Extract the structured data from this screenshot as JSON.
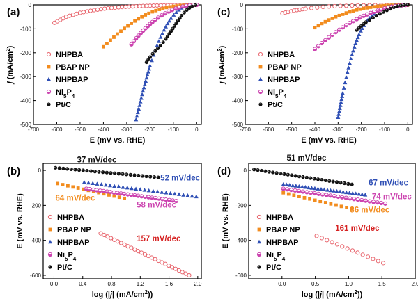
{
  "chart_data": [
    {
      "panel": "(a)",
      "type": "line",
      "xlabel": "E (mV vs. RHE)",
      "ylabel": "j (mA/cm2)",
      "xlim": [
        -700,
        20
      ],
      "ylim": [
        -500,
        0
      ],
      "xticks": [
        -700,
        -600,
        -500,
        -400,
        -300,
        -200,
        -100,
        0
      ],
      "yticks": [
        -500,
        -400,
        -300,
        -200,
        -100,
        0
      ],
      "legend_position": "middle-left",
      "series": [
        {
          "name": "NHPBA",
          "color": "#e8666e",
          "marker": "open-circle",
          "x": [
            -610,
            -560,
            -500,
            -440,
            -380,
            -320,
            -260,
            -200,
            -140,
            -80,
            -20,
            0
          ],
          "y": [
            -75,
            -50,
            -33,
            -22,
            -14,
            -9,
            -6,
            -3.5,
            -2,
            -1,
            -0.3,
            0
          ]
        },
        {
          "name": "PBAP NP",
          "color": "#f28c1e",
          "marker": "square",
          "x": [
            -400,
            -370,
            -340,
            -310,
            -280,
            -250,
            -220,
            -190,
            -160,
            -130,
            -100,
            -70,
            -40,
            -10,
            0
          ],
          "y": [
            -175,
            -148,
            -122,
            -98,
            -77,
            -58,
            -42,
            -29,
            -19,
            -11,
            -6,
            -3,
            -1,
            -0.3,
            0
          ]
        },
        {
          "name": "NHPBAP",
          "color": "#2f4fb5",
          "marker": "triangle",
          "x": [
            -260,
            -245,
            -230,
            -215,
            -200,
            -185,
            -170,
            -155,
            -140,
            -125,
            -110,
            -95,
            -80,
            -65,
            -50,
            -35,
            -20,
            0
          ],
          "y": [
            -480,
            -420,
            -360,
            -305,
            -255,
            -210,
            -170,
            -135,
            -105,
            -78,
            -56,
            -38,
            -24,
            -13,
            -6,
            -2,
            -0.5,
            0
          ]
        },
        {
          "name": "Ni5P4",
          "color": "#cc44b0",
          "marker": "half-circle",
          "x": [
            -280,
            -260,
            -240,
            -220,
            -200,
            -180,
            -160,
            -140,
            -120,
            -100,
            -80,
            -60,
            -40,
            -20,
            0
          ],
          "y": [
            -165,
            -140,
            -118,
            -98,
            -80,
            -64,
            -50,
            -38,
            -28,
            -19,
            -12,
            -7,
            -3,
            -1,
            0
          ]
        },
        {
          "name": "Pt/C",
          "color": "#111111",
          "marker": "black-circle",
          "x": [
            -215,
            -200,
            -185,
            -170,
            -155,
            -140,
            -125,
            -110,
            -95,
            -80,
            -65,
            -50,
            -35,
            -20,
            -5,
            0
          ],
          "y": [
            -240,
            -218,
            -200,
            -185,
            -170,
            -152,
            -132,
            -110,
            -88,
            -66,
            -45,
            -28,
            -15,
            -6,
            -1,
            0
          ]
        }
      ],
      "legend": [
        "NHPBA",
        "PBAP NP",
        "NHPBAP",
        "Ni5P4",
        "Pt/C"
      ]
    },
    {
      "panel": "(c)",
      "type": "line",
      "xlabel": "E (mV vs. RHE)",
      "ylabel": "j (mA/cm2)",
      "xlim": [
        -700,
        20
      ],
      "ylim": [
        -500,
        0
      ],
      "xticks": [
        -700,
        -600,
        -500,
        -400,
        -300,
        -200,
        -100,
        0
      ],
      "yticks": [
        -500,
        -400,
        -300,
        -200,
        -100,
        0
      ],
      "legend_position": "middle-left",
      "series": [
        {
          "name": "NHPBA",
          "color": "#e8666e",
          "marker": "open-circle",
          "x": [
            -540,
            -490,
            -440,
            -390,
            -340,
            -290,
            -240,
            -190,
            -140,
            -90,
            -40,
            0
          ],
          "y": [
            -35,
            -24,
            -16,
            -11,
            -7,
            -4.5,
            -3,
            -2,
            -1.2,
            -0.6,
            -0.2,
            0
          ]
        },
        {
          "name": "PBAP NP",
          "color": "#f28c1e",
          "marker": "square",
          "x": [
            -400,
            -370,
            -340,
            -310,
            -280,
            -250,
            -220,
            -190,
            -160,
            -130,
            -100,
            -70,
            -40,
            -10,
            0
          ],
          "y": [
            -95,
            -78,
            -63,
            -50,
            -39,
            -29,
            -21,
            -15,
            -10,
            -6,
            -3.5,
            -1.8,
            -0.7,
            -0.2,
            0
          ]
        },
        {
          "name": "NHPBAP",
          "color": "#2f4fb5",
          "marker": "triangle",
          "x": [
            -300,
            -290,
            -280,
            -270,
            -260,
            -250,
            -240,
            -230,
            -220,
            -210,
            -200,
            -185,
            -170,
            -150,
            -130,
            -110,
            -90,
            -70,
            -50,
            -30,
            -10,
            0
          ],
          "y": [
            -470,
            -420,
            -370,
            -325,
            -282,
            -244,
            -208,
            -176,
            -148,
            -124,
            -104,
            -80,
            -60,
            -42,
            -28,
            -18,
            -10,
            -5,
            -2,
            -0.8,
            -0.2,
            0
          ]
        },
        {
          "name": "Ni5P4",
          "color": "#cc44b0",
          "marker": "half-circle",
          "x": [
            -400,
            -370,
            -340,
            -310,
            -280,
            -250,
            -220,
            -190,
            -160,
            -130,
            -100,
            -70,
            -40,
            -10,
            0
          ],
          "y": [
            -185,
            -160,
            -136,
            -114,
            -94,
            -76,
            -60,
            -46,
            -34,
            -24,
            -15,
            -8,
            -3.5,
            -0.8,
            0
          ]
        },
        {
          "name": "Pt/C",
          "color": "#111111",
          "marker": "black-circle",
          "x": [
            -220,
            -200,
            -180,
            -160,
            -140,
            -120,
            -100,
            -80,
            -60,
            -40,
            -20,
            0
          ],
          "y": [
            -105,
            -88,
            -72,
            -60,
            -48,
            -37,
            -27,
            -18,
            -10,
            -4.5,
            -1.2,
            0
          ]
        }
      ],
      "legend": [
        "NHPBA",
        "PBAP NP",
        "NHPBAP",
        "Ni5P4",
        "Pt/C"
      ]
    },
    {
      "panel": "(b)",
      "type": "scatter",
      "xlabel": "log (|j| (mA/cm2))",
      "ylabel": "E (mV vs. RHE)",
      "xlim": [
        -0.15,
        2.05
      ],
      "ylim": [
        -620,
        40
      ],
      "xticks": [
        0.0,
        0.4,
        0.8,
        1.2,
        1.6,
        2.0
      ],
      "yticks": [
        -600,
        -400,
        -200,
        0
      ],
      "legend_position": "bottom-left",
      "series": [
        {
          "name": "NHPBA",
          "color": "#e8666e",
          "marker": "open-circle",
          "x0": 0.65,
          "x1": 1.88,
          "y0": -360,
          "y1": -600
        },
        {
          "name": "PBAP NP",
          "color": "#f28c1e",
          "marker": "square",
          "x0": 0.05,
          "x1": 0.98,
          "y0": -75,
          "y1": -160
        },
        {
          "name": "NHPBAP",
          "color": "#2f4fb5",
          "marker": "triangle",
          "x0": 0.42,
          "x1": 1.98,
          "y0": -68,
          "y1": -150
        },
        {
          "name": "Ni5P4",
          "color": "#cc44b0",
          "marker": "half-circle",
          "x0": 0.45,
          "x1": 1.7,
          "y0": -105,
          "y1": -175
        },
        {
          "name": "Pt/C",
          "color": "#111111",
          "marker": "black-circle",
          "x0": 0.02,
          "x1": 1.45,
          "y0": 15,
          "y1": -40
        }
      ],
      "legend": [
        "NHPBA",
        "PBAP NP",
        "NHPBAP",
        "Ni5P4",
        "Pt/C"
      ],
      "annotations": [
        {
          "text": "37 mV/dec",
          "color": "#111111",
          "x": 0.32,
          "y": 45
        },
        {
          "text": "52 mV/dec",
          "color": "#2f4fb5",
          "x": 1.48,
          "y": -58
        },
        {
          "text": "64 mV/dec",
          "color": "#f28c1e",
          "x": 0.02,
          "y": -172
        },
        {
          "text": "58 mV/dec",
          "color": "#cc44b0",
          "x": 1.15,
          "y": -212
        },
        {
          "text": "157 mV/dec",
          "color": "#d62222",
          "x": 1.15,
          "y": -405
        }
      ]
    },
    {
      "panel": "(d)",
      "type": "scatter",
      "xlabel": "log (|j| (mA/cm2))",
      "ylabel": "E (mV vs. RHE)",
      "xlim": [
        -0.5,
        2.0
      ],
      "ylim": [
        -620,
        40
      ],
      "xticks": [
        0.0,
        0.5,
        1.0,
        1.5,
        2.0
      ],
      "yticks": [
        -600,
        -400,
        -200,
        0
      ],
      "legend_position": "bottom-left",
      "series": [
        {
          "name": "NHPBA",
          "color": "#e8666e",
          "marker": "open-circle",
          "x0": 0.52,
          "x1": 1.52,
          "y0": -375,
          "y1": -530
        },
        {
          "name": "PBAP NP",
          "color": "#f28c1e",
          "marker": "square",
          "x0": 0.02,
          "x1": 1.05,
          "y0": -128,
          "y1": -220
        },
        {
          "name": "NHPBAP",
          "color": "#2f4fb5",
          "marker": "triangle",
          "x0": 0.02,
          "x1": 1.25,
          "y0": -80,
          "y1": -140
        },
        {
          "name": "Ni5P4",
          "color": "#cc44b0",
          "marker": "half-circle",
          "x0": 0.02,
          "x1": 1.55,
          "y0": -105,
          "y1": -190
        },
        {
          "name": "Pt/C",
          "color": "#111111",
          "marker": "black-circle",
          "x0": -0.42,
          "x1": 1.05,
          "y0": 5,
          "y1": -80
        }
      ],
      "legend": [
        "NHPBA",
        "PBAP NP",
        "NHPBAP",
        "Ni5P4",
        "Pt/C"
      ],
      "annotations": [
        {
          "text": "51 mV/dec",
          "color": "#111111",
          "x": 0.07,
          "y": 55
        },
        {
          "text": "67 mV/dec",
          "color": "#2f4fb5",
          "x": 1.3,
          "y": -85
        },
        {
          "text": "74 mV/dec",
          "color": "#cc44b0",
          "x": 1.35,
          "y": -165
        },
        {
          "text": "86 mV/dec",
          "color": "#f28c1e",
          "x": 1.02,
          "y": -240
        },
        {
          "text": "161 mV/dec",
          "color": "#d62222",
          "x": 0.8,
          "y": -345
        }
      ]
    }
  ]
}
